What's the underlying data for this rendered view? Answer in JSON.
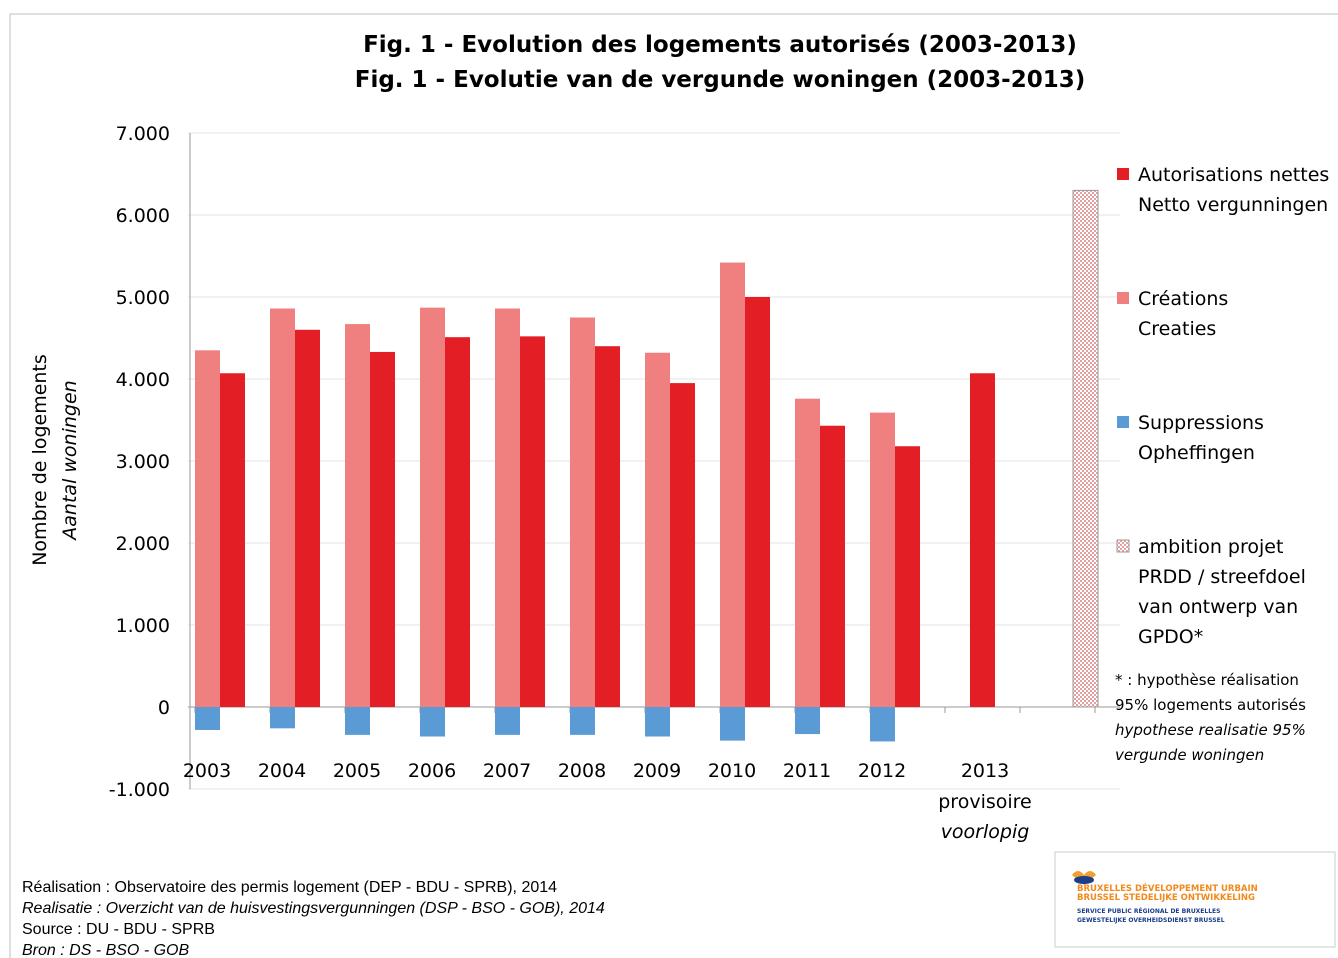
{
  "chart_data": {
    "type": "bar",
    "title": "Fig. 1 - Evolution des logements autorisés (2003-2013)",
    "subtitle": "Fig. 1 - Evolutie van de vergunde woningen (2003-2013)",
    "y_label": "Nombre de logements",
    "y_label_nl": "Aantal woningen",
    "categories": [
      "2003",
      "2004",
      "2005",
      "2006",
      "2007",
      "2008",
      "2009",
      "2010",
      "2011",
      "2012",
      "2013",
      null
    ],
    "category_notes": [
      "provisoire",
      "voorlopig"
    ],
    "ylim": [
      -1000,
      7000
    ],
    "yticks": [
      {
        "value": -1000,
        "label": "-1.000"
      },
      0,
      {
        "value": 1000,
        "label": "1.000"
      },
      {
        "value": 2000,
        "label": "2.000"
      },
      {
        "value": 3000,
        "label": "3.000"
      },
      {
        "value": 4000,
        "label": "4.000"
      },
      {
        "value": 5000,
        "label": "5.000"
      },
      {
        "value": 6000,
        "label": "6.000"
      },
      {
        "value": 7000,
        "label": "7.000"
      }
    ],
    "grid": true,
    "series": [
      {
        "name": [
          "Autorisations nettes",
          "Netto vergunningen"
        ],
        "color": "#e31e24",
        "values": [
          4070,
          4600,
          4330,
          4510,
          4520,
          4400,
          3950,
          5000,
          3430,
          3180,
          4070,
          null
        ]
      },
      {
        "name": [
          "Créations",
          "Creaties"
        ],
        "color": "#f08080",
        "values": [
          4350,
          4860,
          4670,
          4870,
          4860,
          4750,
          4320,
          5420,
          3760,
          3590,
          null,
          null
        ]
      },
      {
        "name": [
          "Suppressions",
          "Opheffingen"
        ],
        "color": "#5b9bd5",
        "values": [
          -280,
          -260,
          -340,
          -360,
          -340,
          -340,
          -360,
          -410,
          -330,
          -420,
          null,
          null
        ]
      },
      {
        "name": [
          "ambition projet",
          "PRDD / streefdoel",
          "van ontwerp van",
          "GPDO*"
        ],
        "color": "#e6a0a0",
        "values": [
          null,
          null,
          null,
          null,
          null,
          null,
          null,
          null,
          null,
          null,
          null,
          6300
        ]
      }
    ],
    "footnote": [
      "* : hypothèse  réalisation",
      "95% logements autorisés",
      "hypothese realisatie 95%",
      "vergunde woningen"
    ],
    "source": [
      "Réalisation : Observatoire des permis logement (DEP - BDU - SPRB), 2014",
      "Realisatie : Overzicht van de huisvestingsvergunningen (DSP - BSO - GOB), 2014",
      "Source : DU - BDU - SPRB",
      "Bron : DS - BSO - GOB"
    ],
    "logo": [
      "BRUXELLES DÉVELOPPEMENT URBAIN",
      "BRUSSEL STEDELIJKE ONTWIKKELING",
      "SERVICE PUBLIC RÉGIONAL DE BRUXELLES",
      "GEWESTELIJKE OVERHEIDSDIENST BRUSSEL"
    ]
  }
}
